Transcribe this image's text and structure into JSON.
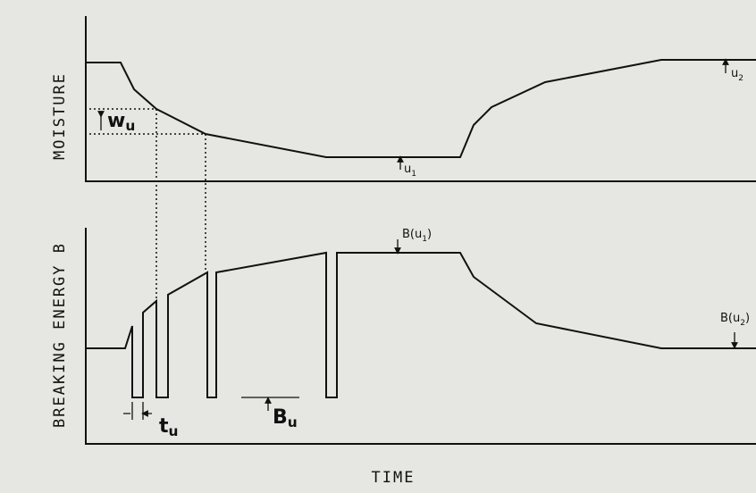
{
  "axes": {
    "top_y_label": "MOISTURE",
    "bottom_y_label": "BREAKING ENERGY B",
    "x_label": "TIME"
  },
  "annotations": {
    "w_u": {
      "base": "w",
      "sub": "u"
    },
    "u_1": {
      "base": "u",
      "sub": "1"
    },
    "u_2": {
      "base": "u",
      "sub": "2"
    },
    "B_u1": {
      "base": "B(u",
      "sub": "1",
      "end": ")"
    },
    "B_u2": {
      "base": "B(u",
      "sub": "2",
      "end": ")"
    },
    "t_u": {
      "base": "t",
      "sub": "u"
    },
    "B_u": {
      "base": "B",
      "sub": "u"
    }
  }
}
